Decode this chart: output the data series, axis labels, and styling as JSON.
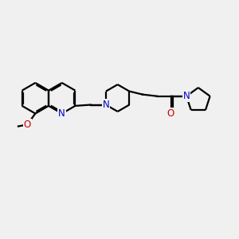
{
  "bg_color": "#f0f0f0",
  "bond_color": "#000000",
  "N_color": "#0000cc",
  "O_color": "#cc0000",
  "font_size": 8.5,
  "bond_width": 1.6,
  "dbo": 0.055,
  "xlim": [
    -0.5,
    10.5
  ],
  "ylim": [
    -1.8,
    3.2
  ],
  "figsize": [
    3.0,
    3.0
  ],
  "dpi": 100
}
